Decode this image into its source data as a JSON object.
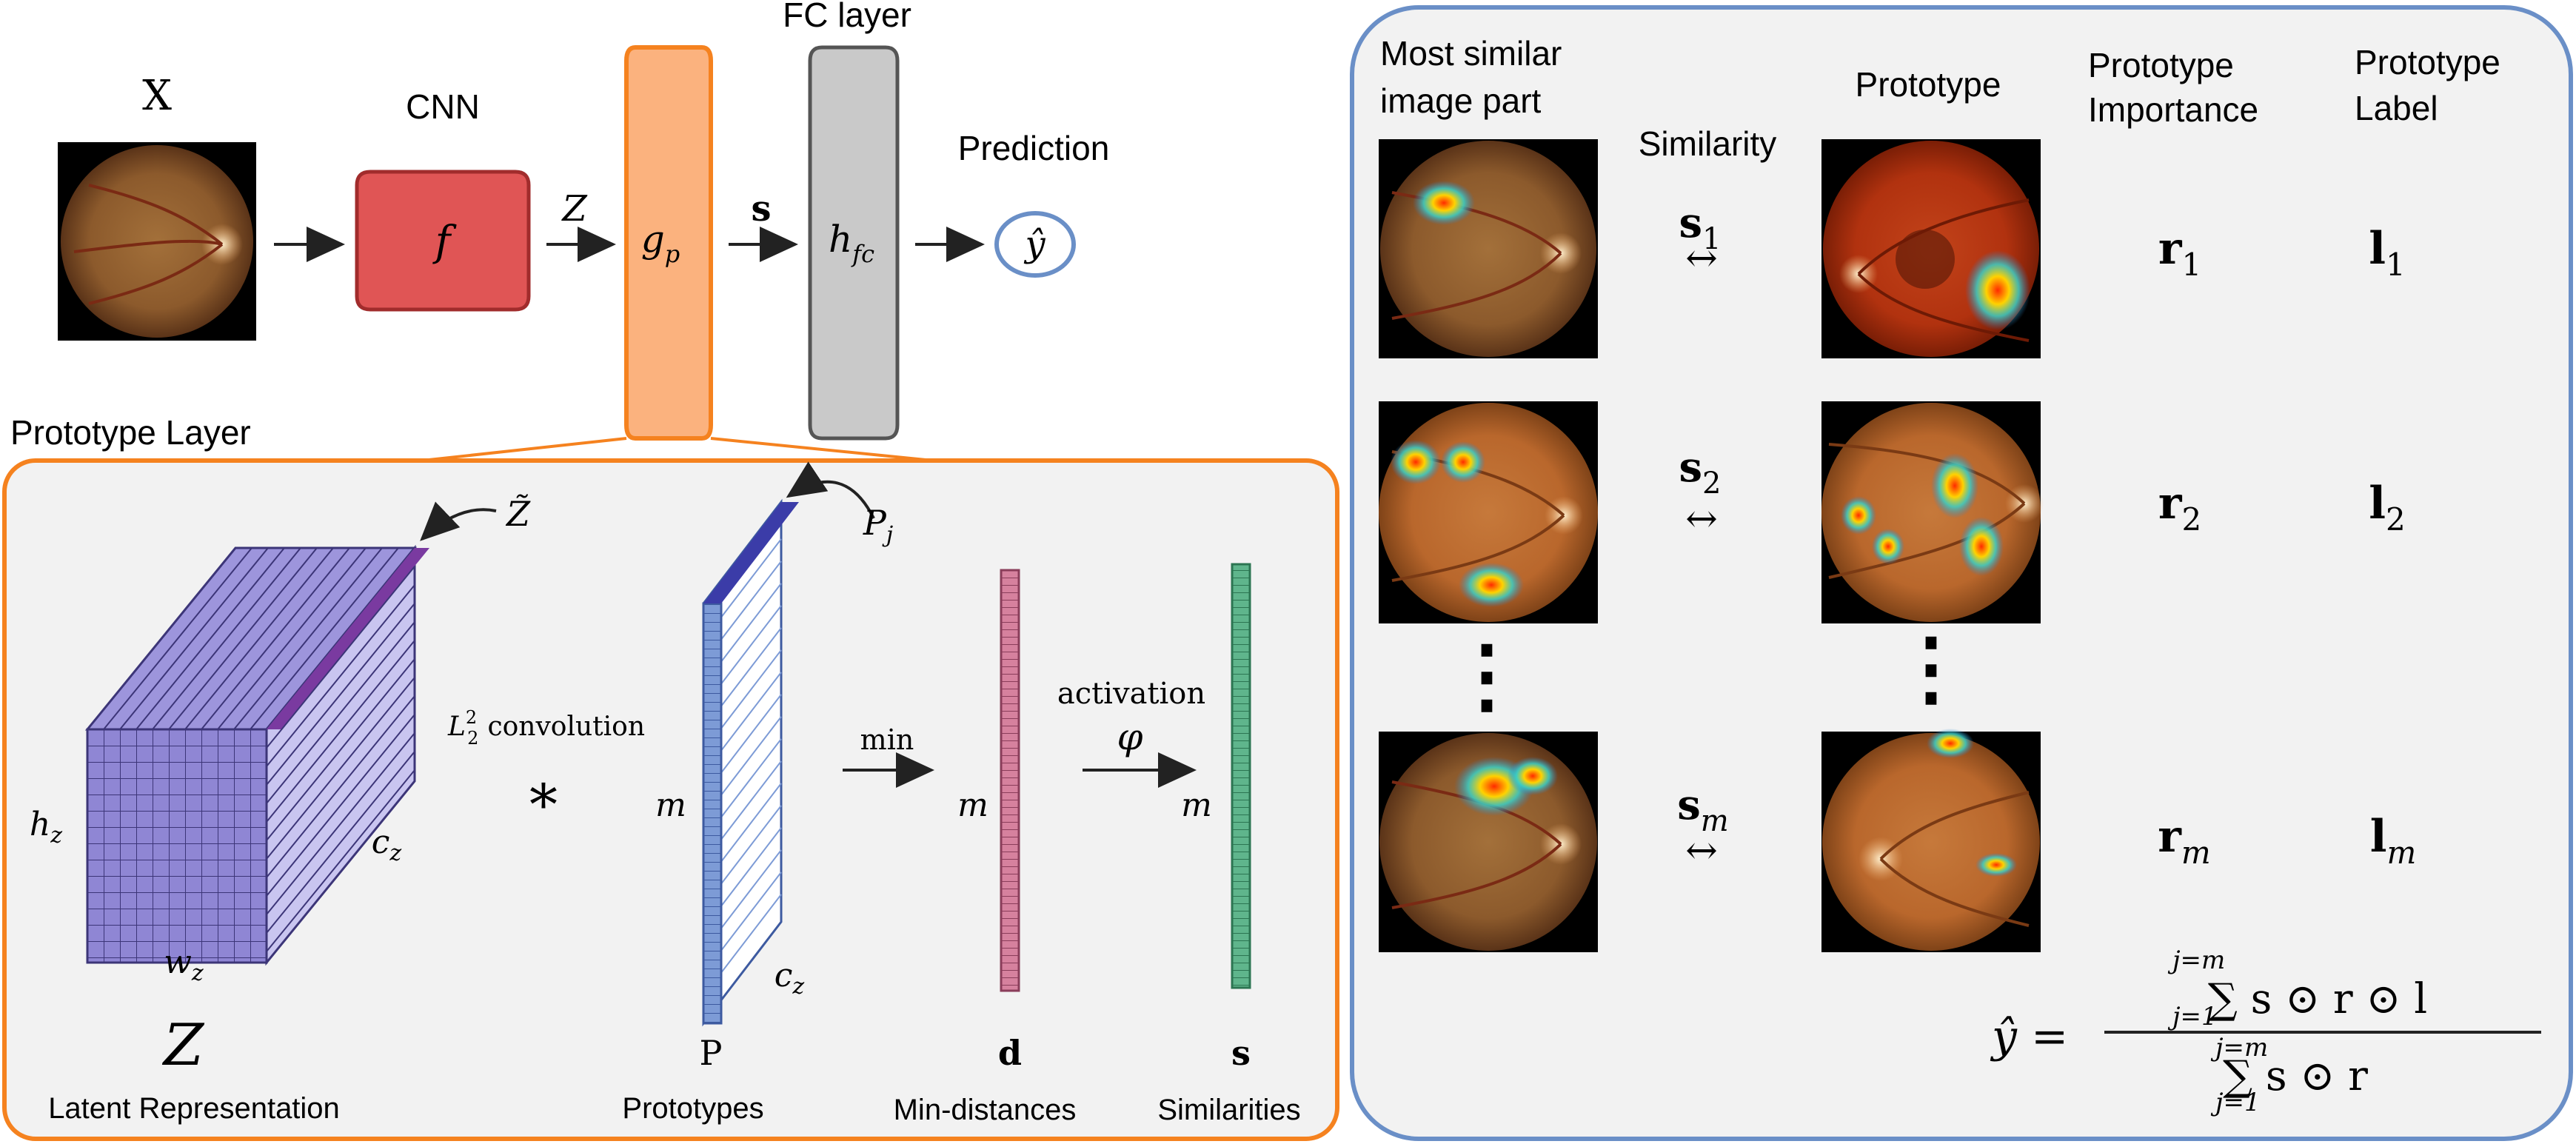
{
  "pipeline": {
    "input_label": "X",
    "cnn_title": "CNN",
    "f_label": "f",
    "z_label": "Z",
    "gp_label": "g",
    "gp_sub": "p",
    "s_label": "s",
    "fc_title": "FC layer",
    "hfc_label": "h",
    "hfc_sub": "fc",
    "prediction_title": "Prediction",
    "yhat_label": "ŷ"
  },
  "prototype_layer": {
    "title": "Prototype Layer",
    "ztilde": "Z̃",
    "hz": "h",
    "hz_sub": "z",
    "wz": "w",
    "wz_sub": "z",
    "cz": "c",
    "cz_sub": "z",
    "Z_big": "Z",
    "latent_caption": "Latent Representation",
    "conv_label": "L",
    "conv_sup": "2",
    "conv_sub": "2",
    "conv_word": "convolution",
    "conv_symbol": "∗",
    "pj": "P",
    "pj_sub": "j",
    "m1": "m",
    "cz2": "c",
    "cz2_sub": "z",
    "P_label": "P",
    "prototypes_caption": "Prototypes",
    "min_label": "min",
    "m2": "m",
    "d_label": "d",
    "mindist_caption": "Min-distances",
    "activation_label": "activation",
    "phi_label": "φ",
    "m3": "m",
    "s_label2": "s",
    "similarities_caption": "Similarities"
  },
  "explanation": {
    "col_most_similar_line1": "Most similar",
    "col_most_similar_line2": "image part",
    "col_similarity": "Similarity",
    "col_prototype": "Prototype",
    "col_importance_line1": "Prototype",
    "col_importance_line2": "Importance",
    "col_label_line1": "Prototype",
    "col_label_line2": "Label",
    "rows": [
      {
        "s": "s",
        "s_sub": "1",
        "r": "r",
        "r_sub": "1",
        "l": "l",
        "l_sub": "1"
      },
      {
        "s": "s",
        "s_sub": "2",
        "r": "r",
        "r_sub": "2",
        "l": "l",
        "l_sub": "2"
      },
      {
        "s": "s",
        "s_sub": "m",
        "r": "r",
        "r_sub": "m",
        "l": "l",
        "l_sub": "m"
      }
    ],
    "ellipsis": "⋮",
    "formula_lhs": "ŷ =",
    "formula_num": "∑ s ⊙ r ⊙ l",
    "formula_den": "∑ s ⊙ r",
    "sum_upper": "j=m",
    "sum_lower": "j=1",
    "index_j": "j"
  },
  "colors": {
    "cnn_fill": "#e05555",
    "gp_fill": "#fbb27e",
    "gp_stroke": "#f5821f",
    "fc_fill": "#c9c9c9",
    "proto_frame": "#f5821f",
    "expl_frame": "#6a8fc7",
    "cube": "#8f86d4",
    "proto_col": "#7d9bd6",
    "dist_col": "#d6819e",
    "sim_col": "#5fb58c"
  }
}
